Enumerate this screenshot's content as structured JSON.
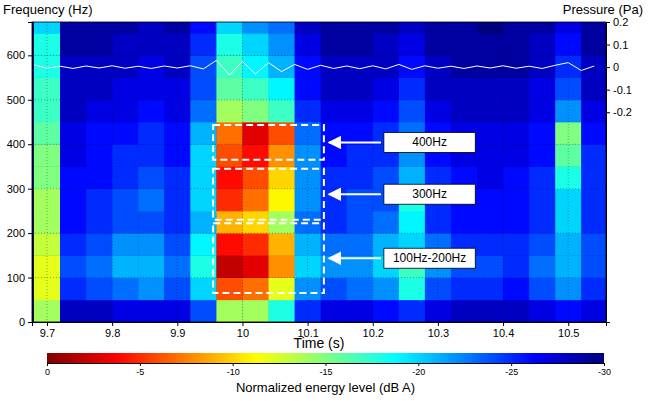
{
  "chart_data": {
    "type": "heatmap",
    "x_label": "Time (s)",
    "y_label": "Frequency (Hz)",
    "y2_label": "Pressure (Pa)",
    "xlim": [
      9.677,
      10.558
    ],
    "xticks": [
      9.7,
      9.8,
      9.9,
      10,
      10.1,
      10.2,
      10.3,
      10.4,
      10.5
    ],
    "ylim": [
      0,
      675
    ],
    "yticks": [
      0,
      100,
      200,
      300,
      400,
      500,
      600
    ],
    "y2lim": [
      -1.13,
      0.2
    ],
    "y2ticks": [
      -0.2,
      -0.1,
      0,
      0.1,
      0.2
    ],
    "grid": true,
    "heatmap": {
      "x_edges": [
        9.68,
        9.72,
        9.76,
        9.8,
        9.84,
        9.88,
        9.92,
        9.96,
        10.0,
        10.04,
        10.08,
        10.12,
        10.16,
        10.2,
        10.24,
        10.28,
        10.32,
        10.36,
        10.4,
        10.44,
        10.48,
        10.52,
        10.56
      ],
      "y_edges": [
        0,
        50,
        100,
        150,
        200,
        250,
        300,
        350,
        400,
        450,
        500,
        550,
        600,
        650,
        700
      ],
      "cells": [
        [
          -14,
          -28,
          -28,
          -27,
          -27,
          -27,
          -24,
          -14,
          -14,
          -18,
          -25,
          -27,
          -27,
          -26,
          -25,
          -27,
          -28,
          -28,
          -28,
          -27,
          -26,
          -27
        ],
        [
          -12,
          -25,
          -24,
          -23,
          -22,
          -24,
          -20,
          -6,
          -7,
          -12,
          -22,
          -24,
          -23,
          -22,
          -18,
          -24,
          -25,
          -25,
          -26,
          -24,
          -22,
          -25
        ],
        [
          -12,
          -24,
          -23,
          -21,
          -21,
          -23,
          -18,
          -2,
          -3,
          -8,
          -20,
          -22,
          -22,
          -20,
          -17,
          -22,
          -24,
          -24,
          -25,
          -23,
          -21,
          -24
        ],
        [
          -13,
          -25,
          -24,
          -22,
          -22,
          -24,
          -19,
          -4,
          -5,
          -9,
          -21,
          -23,
          -23,
          -21,
          -20,
          -23,
          -25,
          -25,
          -25,
          -24,
          -21,
          -24
        ],
        [
          -14,
          -26,
          -25,
          -24,
          -24,
          -25,
          -21,
          -9,
          -10,
          -14,
          -23,
          -25,
          -24,
          -23,
          -19,
          -25,
          -26,
          -26,
          -26,
          -25,
          -20,
          -25
        ],
        [
          -14,
          -26,
          -25,
          -24,
          -23,
          -25,
          -20,
          -5,
          -7,
          -11,
          -22,
          -25,
          -24,
          -24,
          -18,
          -25,
          -26,
          -26,
          -26,
          -25,
          -20,
          -25
        ],
        [
          -15,
          -26,
          -26,
          -25,
          -24,
          -25,
          -20,
          -4,
          -6,
          -10,
          -22,
          -25,
          -25,
          -24,
          -21,
          -25,
          -26,
          -27,
          -26,
          -25,
          -18,
          -25
        ],
        [
          -15,
          -27,
          -26,
          -25,
          -25,
          -26,
          -20,
          -6,
          -4,
          -8,
          -22,
          -26,
          -25,
          -25,
          -22,
          -26,
          -27,
          -27,
          -27,
          -26,
          -16,
          -25
        ],
        [
          -16,
          -27,
          -26,
          -26,
          -25,
          -26,
          -21,
          -7,
          -3,
          -6,
          -23,
          -26,
          -26,
          -25,
          -23,
          -26,
          -27,
          -27,
          -27,
          -26,
          -15,
          -26
        ],
        [
          -17,
          -28,
          -27,
          -27,
          -26,
          -27,
          -23,
          -14,
          -15,
          -17,
          -25,
          -27,
          -27,
          -26,
          -24,
          -27,
          -28,
          -28,
          -28,
          -27,
          -22,
          -27
        ],
        [
          -17,
          -28,
          -28,
          -27,
          -27,
          -27,
          -24,
          -16,
          -17,
          -19,
          -26,
          -28,
          -28,
          -27,
          -25,
          -28,
          -28,
          -28,
          -28,
          -27,
          -24,
          -28
        ],
        [
          -18,
          -28,
          -28,
          -28,
          -27,
          -28,
          -24,
          -17,
          -19,
          -21,
          -26,
          -28,
          -28,
          -28,
          -26,
          -28,
          -29,
          -29,
          -29,
          -28,
          -25,
          -28
        ],
        [
          -18,
          -29,
          -29,
          -28,
          -28,
          -28,
          -25,
          -18,
          -20,
          -22,
          -27,
          -29,
          -29,
          -28,
          -27,
          -29,
          -29,
          -29,
          -29,
          -28,
          -26,
          -29
        ],
        [
          -20,
          -29,
          -29,
          -29,
          -28,
          -29,
          -26,
          -20,
          -22,
          -23,
          -28,
          -29,
          -29,
          -29,
          -28,
          -29,
          -29,
          -30,
          -29,
          -29,
          -27,
          -29
        ]
      ]
    },
    "colorbar": {
      "label": "Normalized energy level (dB A)",
      "range": [
        0,
        -30
      ],
      "ticks": [
        0,
        -5,
        -10,
        -15,
        -20,
        -25,
        -30
      ]
    },
    "series": [
      {
        "type": "line",
        "color": "#ffffff",
        "axis": "y2",
        "x": [
          9.68,
          9.7,
          9.72,
          9.74,
          9.76,
          9.78,
          9.8,
          9.82,
          9.84,
          9.86,
          9.88,
          9.9,
          9.92,
          9.94,
          9.96,
          9.98,
          10.0,
          10.02,
          10.04,
          10.06,
          10.08,
          10.1,
          10.12,
          10.14,
          10.16,
          10.18,
          10.2,
          10.22,
          10.24,
          10.26,
          10.28,
          10.3,
          10.32,
          10.34,
          10.36,
          10.38,
          10.4,
          10.42,
          10.44,
          10.46,
          10.48,
          10.5,
          10.52,
          10.54
        ],
        "values": [
          0.01,
          -0.005,
          0.004,
          -0.006,
          0.005,
          -0.004,
          0.006,
          -0.005,
          0.004,
          -0.006,
          0.005,
          -0.004,
          0.006,
          -0.008,
          0.03,
          -0.035,
          0.025,
          -0.03,
          0.02,
          -0.02,
          0.012,
          -0.01,
          0.008,
          -0.006,
          0.005,
          -0.007,
          0.006,
          -0.008,
          0.012,
          -0.01,
          0.006,
          -0.005,
          0.004,
          -0.006,
          0.005,
          -0.004,
          0.006,
          -0.005,
          0.004,
          -0.006,
          0.008,
          0.02,
          -0.015,
          0.005
        ]
      }
    ],
    "annotations": [
      {
        "text": "400Hz",
        "box_x": [
          9.955,
          10.125
        ],
        "box_y": [
          365,
          443
        ]
      },
      {
        "text": "300Hz",
        "box_x": [
          9.955,
          10.125
        ],
        "box_y": [
          230,
          345
        ]
      },
      {
        "text": "100Hz-200Hz",
        "box_x": [
          9.955,
          10.125
        ],
        "box_y": [
          65,
          222
        ]
      }
    ]
  }
}
